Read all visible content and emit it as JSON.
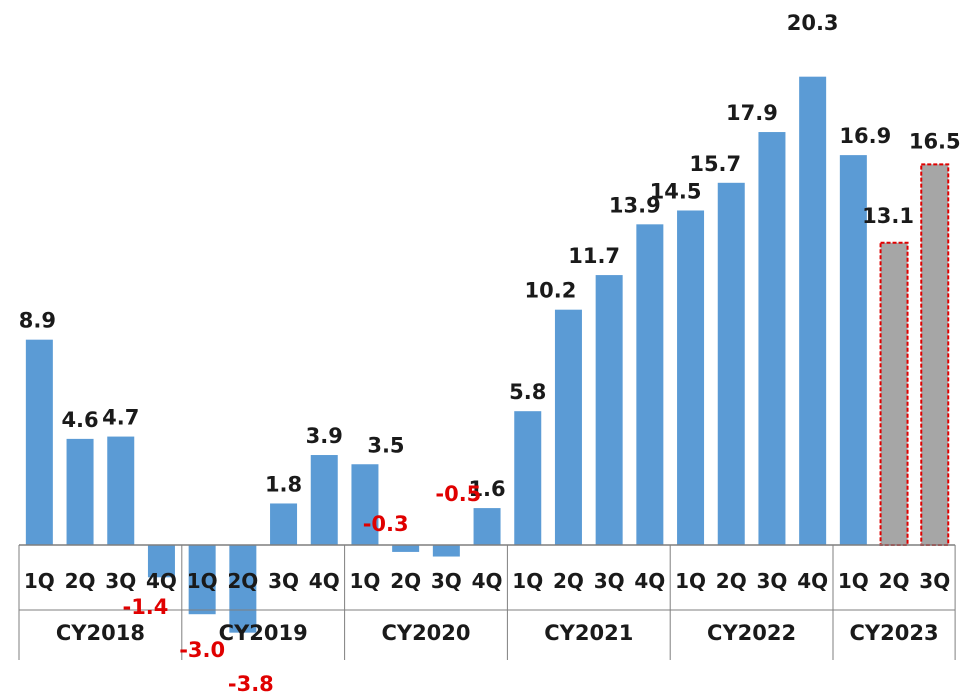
{
  "chart_data": {
    "type": "bar",
    "categories": [
      "1Q",
      "2Q",
      "3Q",
      "4Q",
      "1Q",
      "2Q",
      "3Q",
      "4Q",
      "1Q",
      "2Q",
      "3Q",
      "4Q",
      "1Q",
      "2Q",
      "3Q",
      "4Q",
      "1Q",
      "2Q",
      "3Q",
      "4Q",
      "1Q",
      "2Q",
      "3Q"
    ],
    "values": [
      8.9,
      4.6,
      4.7,
      -1.4,
      -3.0,
      -3.8,
      1.8,
      3.9,
      3.5,
      -0.3,
      -0.5,
      1.6,
      5.8,
      10.2,
      11.7,
      13.9,
      14.5,
      15.7,
      17.9,
      20.3,
      16.9,
      13.1,
      16.5
    ],
    "value_labels": [
      "8.9",
      "4.6",
      "4.7",
      "-1.4",
      "-3.0",
      "-3.8",
      "1.8",
      "3.9",
      "3.5",
      "-0.3",
      "-0.5",
      "1.6",
      "5.8",
      "10.2",
      "11.7",
      "13.9",
      "14.5",
      "15.7",
      "17.9",
      "20.3",
      "16.9",
      "13.1",
      "16.5"
    ],
    "forecast": [
      false,
      false,
      false,
      false,
      false,
      false,
      false,
      false,
      false,
      false,
      false,
      false,
      false,
      false,
      false,
      false,
      false,
      false,
      false,
      false,
      false,
      true,
      true
    ],
    "groups": [
      {
        "label": "CY2018",
        "count": 4
      },
      {
        "label": "CY2019",
        "count": 4
      },
      {
        "label": "CY2020",
        "count": 4
      },
      {
        "label": "CY2021",
        "count": 4
      },
      {
        "label": "CY2022",
        "count": 4
      },
      {
        "label": "CY2023",
        "count": 3
      }
    ],
    "ylim": [
      -3.8,
      20.3
    ],
    "grid": false,
    "colors": {
      "actual": "#5b9bd5",
      "forecast": "#a6a6a6",
      "forecast_border": "#e00000",
      "positive_label": "#1a1a1a",
      "negative_label": "#e00000",
      "axis": "#7f7f7f"
    }
  }
}
